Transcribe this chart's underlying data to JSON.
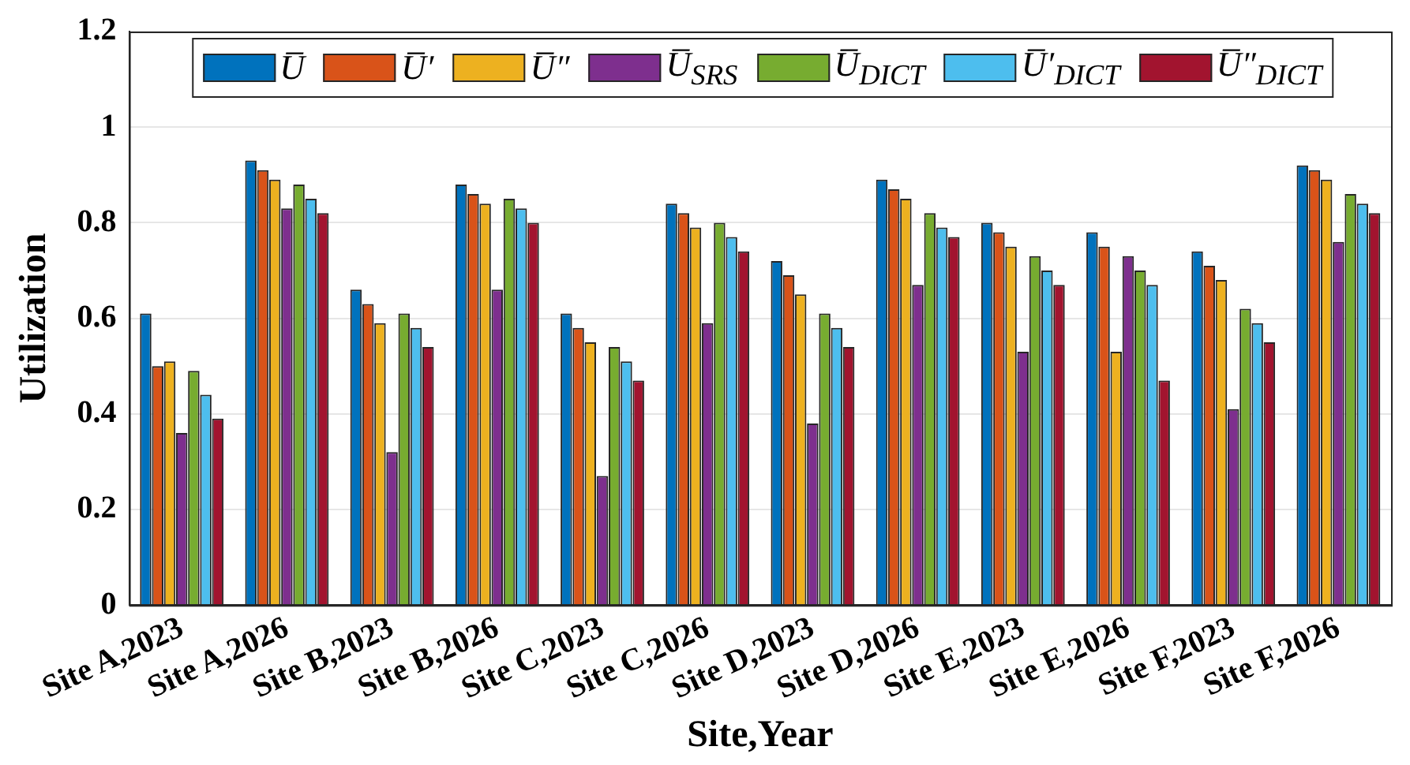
{
  "chart_data": {
    "type": "bar",
    "xlabel": "Site,Year",
    "ylabel": "Utilization",
    "categories": [
      "Site A,2023",
      "Site A,2026",
      "Site B,2023",
      "Site B,2026",
      "Site C,2023",
      "Site C,2026",
      "Site D,2023",
      "Site D,2026",
      "Site E,2023",
      "Site E,2026",
      "Site F,2023",
      "Site F,2026"
    ],
    "series": [
      {
        "name": "U̅",
        "color": "#0072bd",
        "values": [
          0.61,
          0.93,
          0.66,
          0.88,
          0.61,
          0.84,
          0.72,
          0.89,
          0.8,
          0.78,
          0.74,
          0.92
        ]
      },
      {
        "name": "U̅′",
        "color": "#d95319",
        "values": [
          0.5,
          0.91,
          0.63,
          0.86,
          0.58,
          0.82,
          0.69,
          0.87,
          0.78,
          0.75,
          0.71,
          0.91
        ]
      },
      {
        "name": "U̅″",
        "color": "#edb120",
        "values": [
          0.51,
          0.89,
          0.59,
          0.84,
          0.55,
          0.79,
          0.65,
          0.85,
          0.75,
          0.53,
          0.68,
          0.89
        ]
      },
      {
        "name": "U̅$_{SRS}$",
        "color": "#7e2f8e",
        "values": [
          0.36,
          0.83,
          0.32,
          0.66,
          0.27,
          0.59,
          0.38,
          0.67,
          0.53,
          0.73,
          0.41,
          0.76
        ]
      },
      {
        "name": "U̅$_{DICT}$",
        "color": "#77ac30",
        "values": [
          0.49,
          0.88,
          0.61,
          0.85,
          0.54,
          0.8,
          0.61,
          0.82,
          0.73,
          0.7,
          0.62,
          0.86
        ]
      },
      {
        "name": "U̅′$_{DICT}$",
        "color": "#4dbeee",
        "values": [
          0.44,
          0.85,
          0.58,
          0.83,
          0.51,
          0.77,
          0.58,
          0.79,
          0.7,
          0.67,
          0.59,
          0.84
        ]
      },
      {
        "name": "U̅″$_{DICT}$",
        "color": "#a2142f",
        "values": [
          0.39,
          0.82,
          0.54,
          0.8,
          0.47,
          0.74,
          0.54,
          0.77,
          0.67,
          0.47,
          0.55,
          0.82
        ]
      }
    ],
    "ylim": [
      0,
      1.2
    ],
    "yticks": [
      0,
      0.2,
      0.4,
      0.6,
      0.8,
      1,
      1.2
    ],
    "grid": "y",
    "legend": "top"
  }
}
